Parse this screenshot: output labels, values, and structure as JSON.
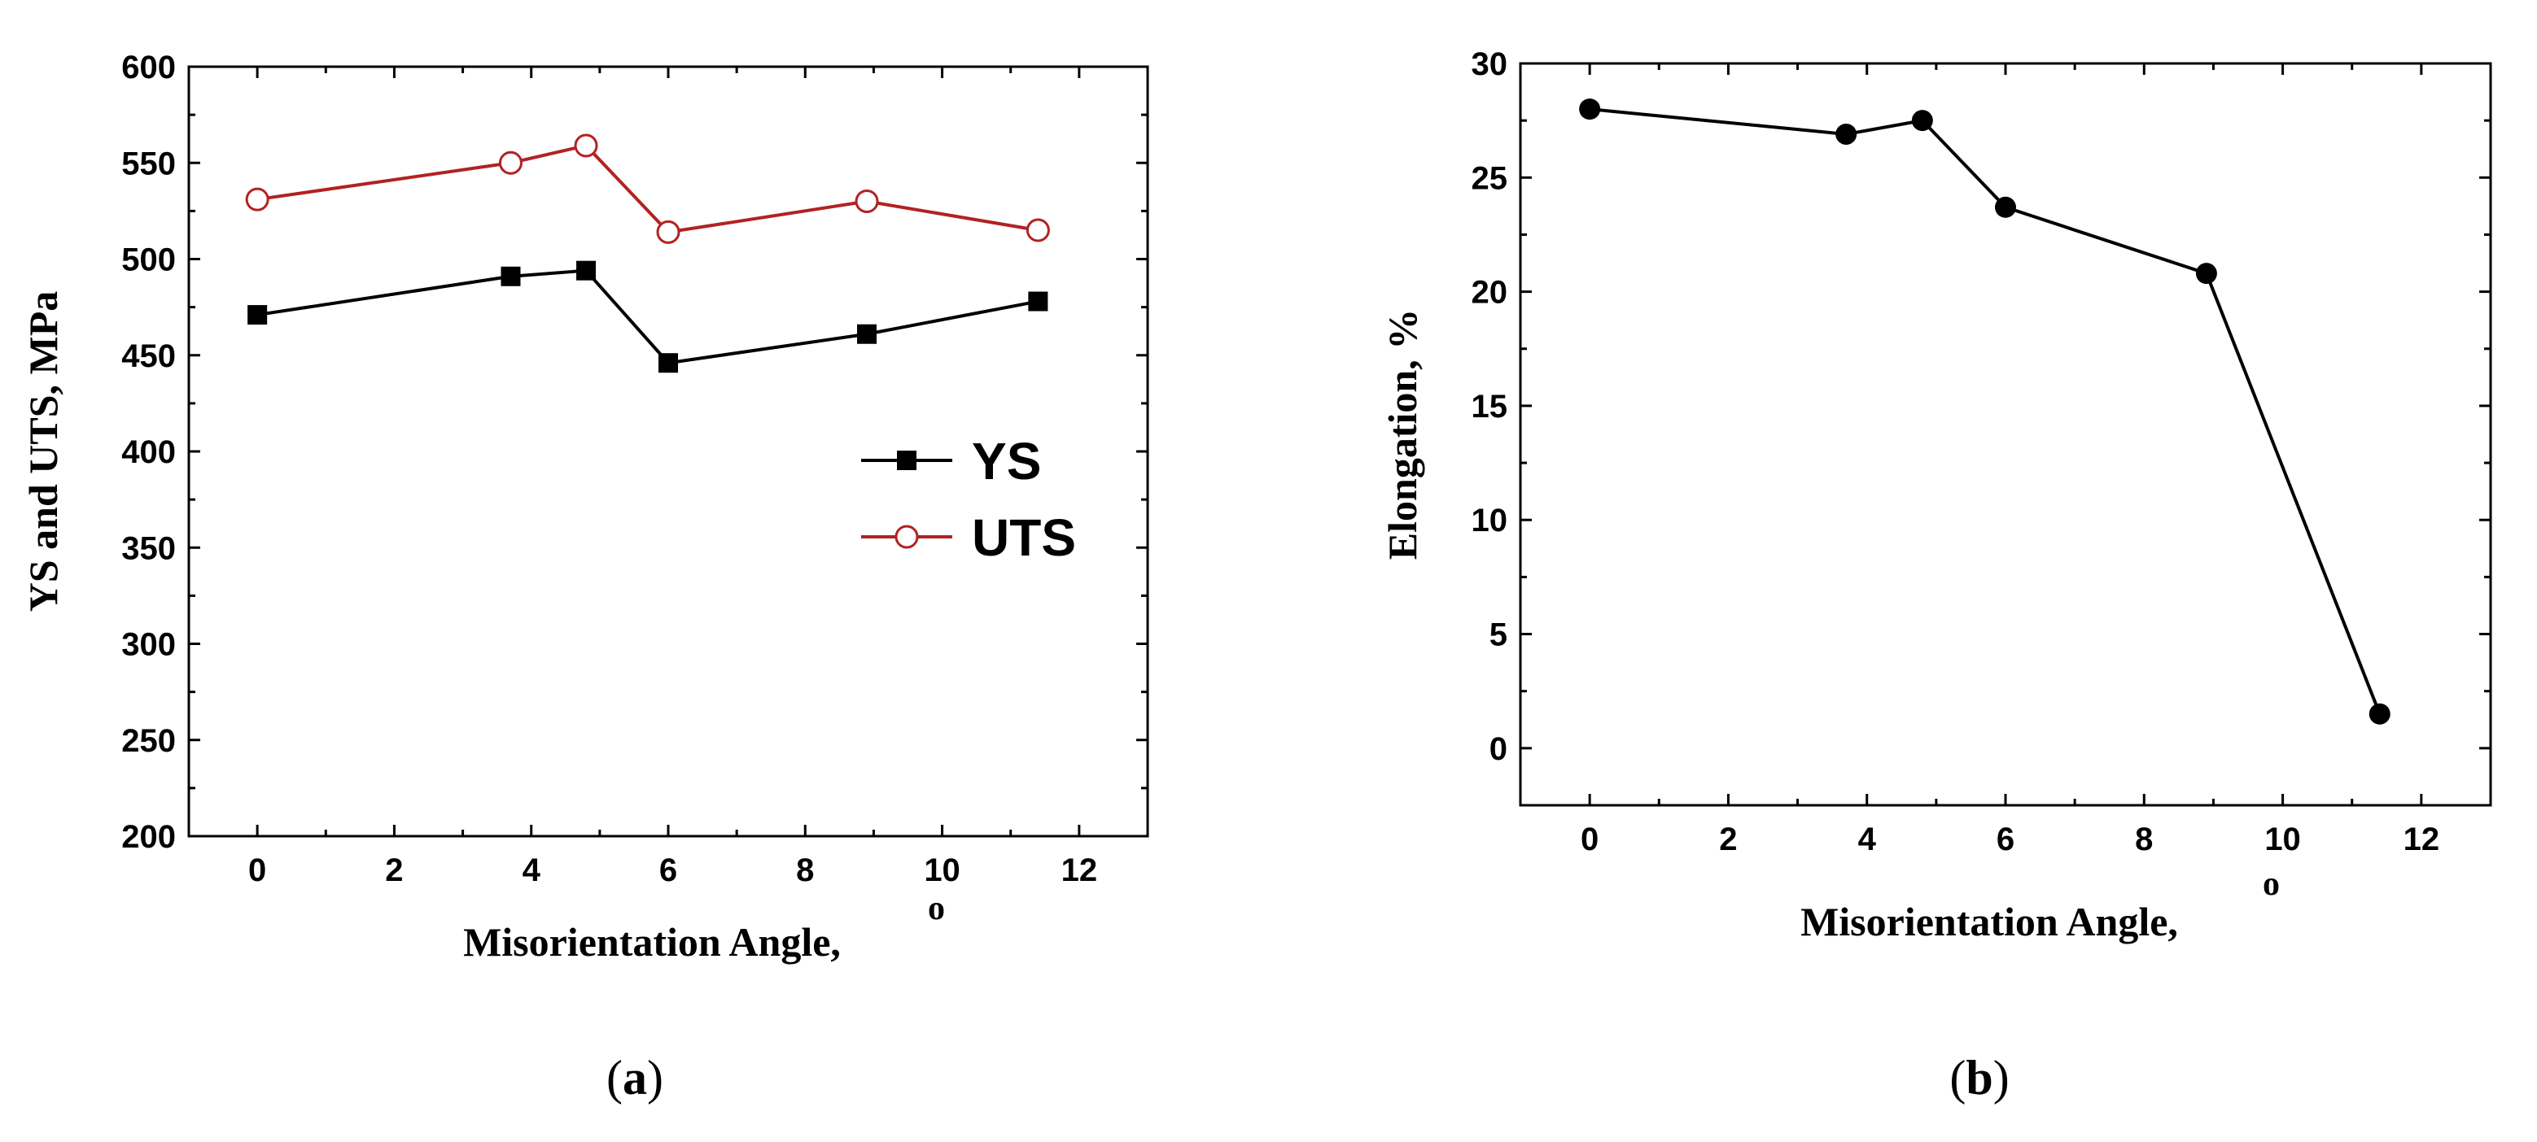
{
  "chart_data": [
    {
      "panel": "a",
      "type": "line",
      "caption_letter": "a",
      "xlabel": "Misorientation Angle,",
      "xlabel_superscript": "o",
      "ylabel": "YS and UTS, MPa",
      "xlim": [
        -1,
        13
      ],
      "ylim": [
        200,
        600
      ],
      "xticks": [
        0,
        2,
        4,
        6,
        8,
        10,
        12
      ],
      "yticks": [
        200,
        250,
        300,
        350,
        400,
        450,
        500,
        550,
        600
      ],
      "x": [
        0,
        3.7,
        4.8,
        6.0,
        8.9,
        11.4
      ],
      "series": [
        {
          "name": "YS",
          "values": [
            471,
            491,
            494,
            446,
            461,
            478
          ],
          "color": "#000000",
          "marker": "square"
        },
        {
          "name": "UTS",
          "values": [
            531,
            550,
            559,
            514,
            530,
            515
          ],
          "color": "#b22222",
          "marker": "open-circle"
        }
      ],
      "legend_position": "center-right"
    },
    {
      "panel": "b",
      "type": "line",
      "caption_letter": "b",
      "xlabel": "Misorientation Angle,",
      "xlabel_superscript": "o",
      "ylabel": "Elongation, %",
      "xlim": [
        -1,
        13
      ],
      "ylim": [
        -2.5,
        30
      ],
      "xticks": [
        0,
        2,
        4,
        6,
        8,
        10,
        12
      ],
      "yticks": [
        0,
        5,
        10,
        15,
        20,
        25,
        30
      ],
      "x": [
        0,
        3.7,
        4.8,
        6.0,
        8.9,
        11.4
      ],
      "series": [
        {
          "name": "Elongation",
          "values": [
            28.0,
            26.9,
            27.5,
            23.7,
            20.8,
            1.5
          ],
          "color": "#000000",
          "marker": "filled-circle"
        }
      ]
    }
  ]
}
